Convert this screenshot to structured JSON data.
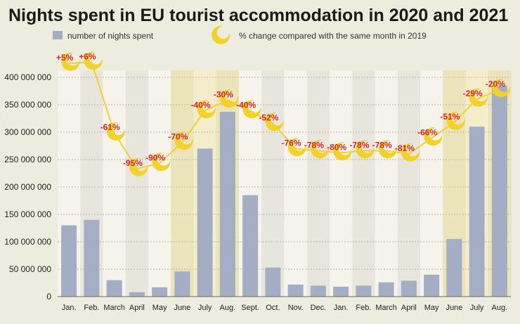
{
  "chart_data": {
    "type": "bar",
    "title": "Nights spent in EU tourist accommodation in 2020 and 2021",
    "legend": {
      "bars_label": "number of nights spent",
      "line_label": "% change compared with the same month in 2019"
    },
    "categories": [
      "Jan.",
      "Feb.",
      "March",
      "April",
      "May",
      "June",
      "July",
      "Aug.",
      "Sept.",
      "Oct.",
      "Nov.",
      "Dec.",
      "Jan.",
      "Feb.",
      "March",
      "April",
      "May",
      "June",
      "July",
      "Aug."
    ],
    "series": [
      {
        "name": "number of nights spent",
        "type": "bar",
        "values": [
          130000000,
          140000000,
          30000000,
          8000000,
          17000000,
          46000000,
          270000000,
          337000000,
          185000000,
          53000000,
          22000000,
          20000000,
          18000000,
          20000000,
          26000000,
          29000000,
          40000000,
          105000000,
          310000000,
          385000000
        ]
      },
      {
        "name": "% change compared with the same month in 2019",
        "type": "line",
        "values": [
          5,
          6,
          -61,
          -95,
          -90,
          -70,
          -40,
          -30,
          -40,
          -52,
          -76,
          -78,
          -80,
          -78,
          -78,
          -81,
          -66,
          -51,
          -29,
          -20
        ],
        "labels": [
          "+5%",
          "+6%",
          "-61%",
          "-95%",
          "-90%",
          "-70%",
          "-40%",
          "-30%",
          "-40%",
          "-52%",
          "-76%",
          "-78%",
          "-80%",
          "-78%",
          "-78%",
          "-81%",
          "-66%",
          "-51%",
          "-29%",
          "-20%"
        ]
      }
    ],
    "ylim": [
      0,
      400000000
    ],
    "yticks": [
      0,
      50000000,
      100000000,
      150000000,
      200000000,
      250000000,
      300000000,
      350000000,
      400000000
    ],
    "ytick_labels": [
      "0",
      "50 000 000",
      "100 000 000",
      "150 000 000",
      "200 000 000",
      "250 000 000",
      "300 000 000",
      "350 000 000",
      "400 000 000"
    ],
    "summer_highlight_months": [
      5,
      6,
      7,
      17,
      18,
      19
    ],
    "colors": {
      "bar": "#a3aec5",
      "line": "#f2d12a",
      "moon": "#f2d12a",
      "pct_text": "#e0241c",
      "column_light": "#f5f3ec",
      "column_dark": "#e8e6dc",
      "highlight_light": "#f3edcb",
      "highlight_dark": "#ebe3b9"
    }
  }
}
